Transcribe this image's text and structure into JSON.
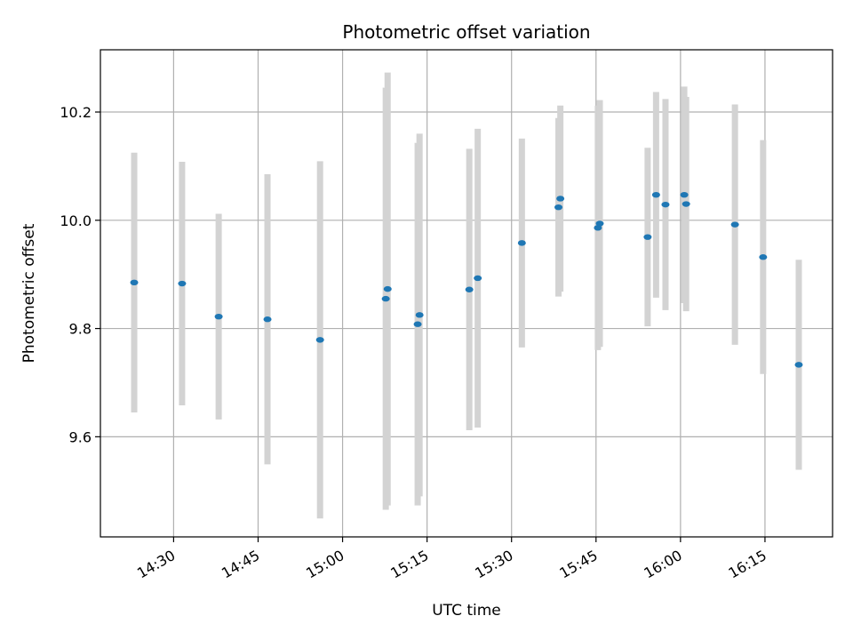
{
  "chart_data": {
    "type": "scatter",
    "title": "Photometric offset variation",
    "xlabel": "UTC time",
    "ylabel": "Photometric offset",
    "grid": true,
    "legend": "none",
    "xlim": [
      "14:17",
      "16:27"
    ],
    "ylim": [
      9.415,
      10.315
    ],
    "xticks": [
      "14:30",
      "14:45",
      "15:00",
      "15:15",
      "15:30",
      "15:45",
      "16:00",
      "16:15"
    ],
    "yticks": [
      "9.6",
      "9.8",
      "10.0",
      "10.2"
    ],
    "point_color": "#1f77b4",
    "errorbar_color": "#d3d3d3",
    "points": [
      {
        "x": "14:23:00",
        "y": 9.885,
        "yerr": 0.24
      },
      {
        "x": "14:31:30",
        "y": 9.883,
        "yerr": 0.225
      },
      {
        "x": "14:38:00",
        "y": 9.822,
        "yerr": 0.19
      },
      {
        "x": "14:46:40",
        "y": 9.817,
        "yerr": 0.268
      },
      {
        "x": "14:56:00",
        "y": 9.779,
        "yerr": 0.33
      },
      {
        "x": "15:07:40",
        "y": 9.855,
        "yerr": 0.39
      },
      {
        "x": "15:08:00",
        "y": 9.873,
        "yerr": 0.4
      },
      {
        "x": "15:13:20",
        "y": 9.808,
        "yerr": 0.335
      },
      {
        "x": "15:13:40",
        "y": 9.825,
        "yerr": 0.335
      },
      {
        "x": "15:22:30",
        "y": 9.872,
        "yerr": 0.26
      },
      {
        "x": "15:24:00",
        "y": 9.893,
        "yerr": 0.276
      },
      {
        "x": "15:31:50",
        "y": 9.958,
        "yerr": 0.193
      },
      {
        "x": "15:38:20",
        "y": 10.024,
        "yerr": 0.165
      },
      {
        "x": "15:38:40",
        "y": 10.04,
        "yerr": 0.172
      },
      {
        "x": "15:45:20",
        "y": 9.986,
        "yerr": 0.226
      },
      {
        "x": "15:45:40",
        "y": 9.994,
        "yerr": 0.228
      },
      {
        "x": "15:54:10",
        "y": 9.969,
        "yerr": 0.165
      },
      {
        "x": "15:55:40",
        "y": 10.047,
        "yerr": 0.19
      },
      {
        "x": "15:57:20",
        "y": 10.029,
        "yerr": 0.195
      },
      {
        "x": "16:00:40",
        "y": 10.047,
        "yerr": 0.2
      },
      {
        "x": "16:01:00",
        "y": 10.03,
        "yerr": 0.198
      },
      {
        "x": "16:09:40",
        "y": 9.992,
        "yerr": 0.222
      },
      {
        "x": "16:14:40",
        "y": 9.932,
        "yerr": 0.216
      },
      {
        "x": "16:21:00",
        "y": 9.733,
        "yerr": 0.194
      }
    ]
  }
}
